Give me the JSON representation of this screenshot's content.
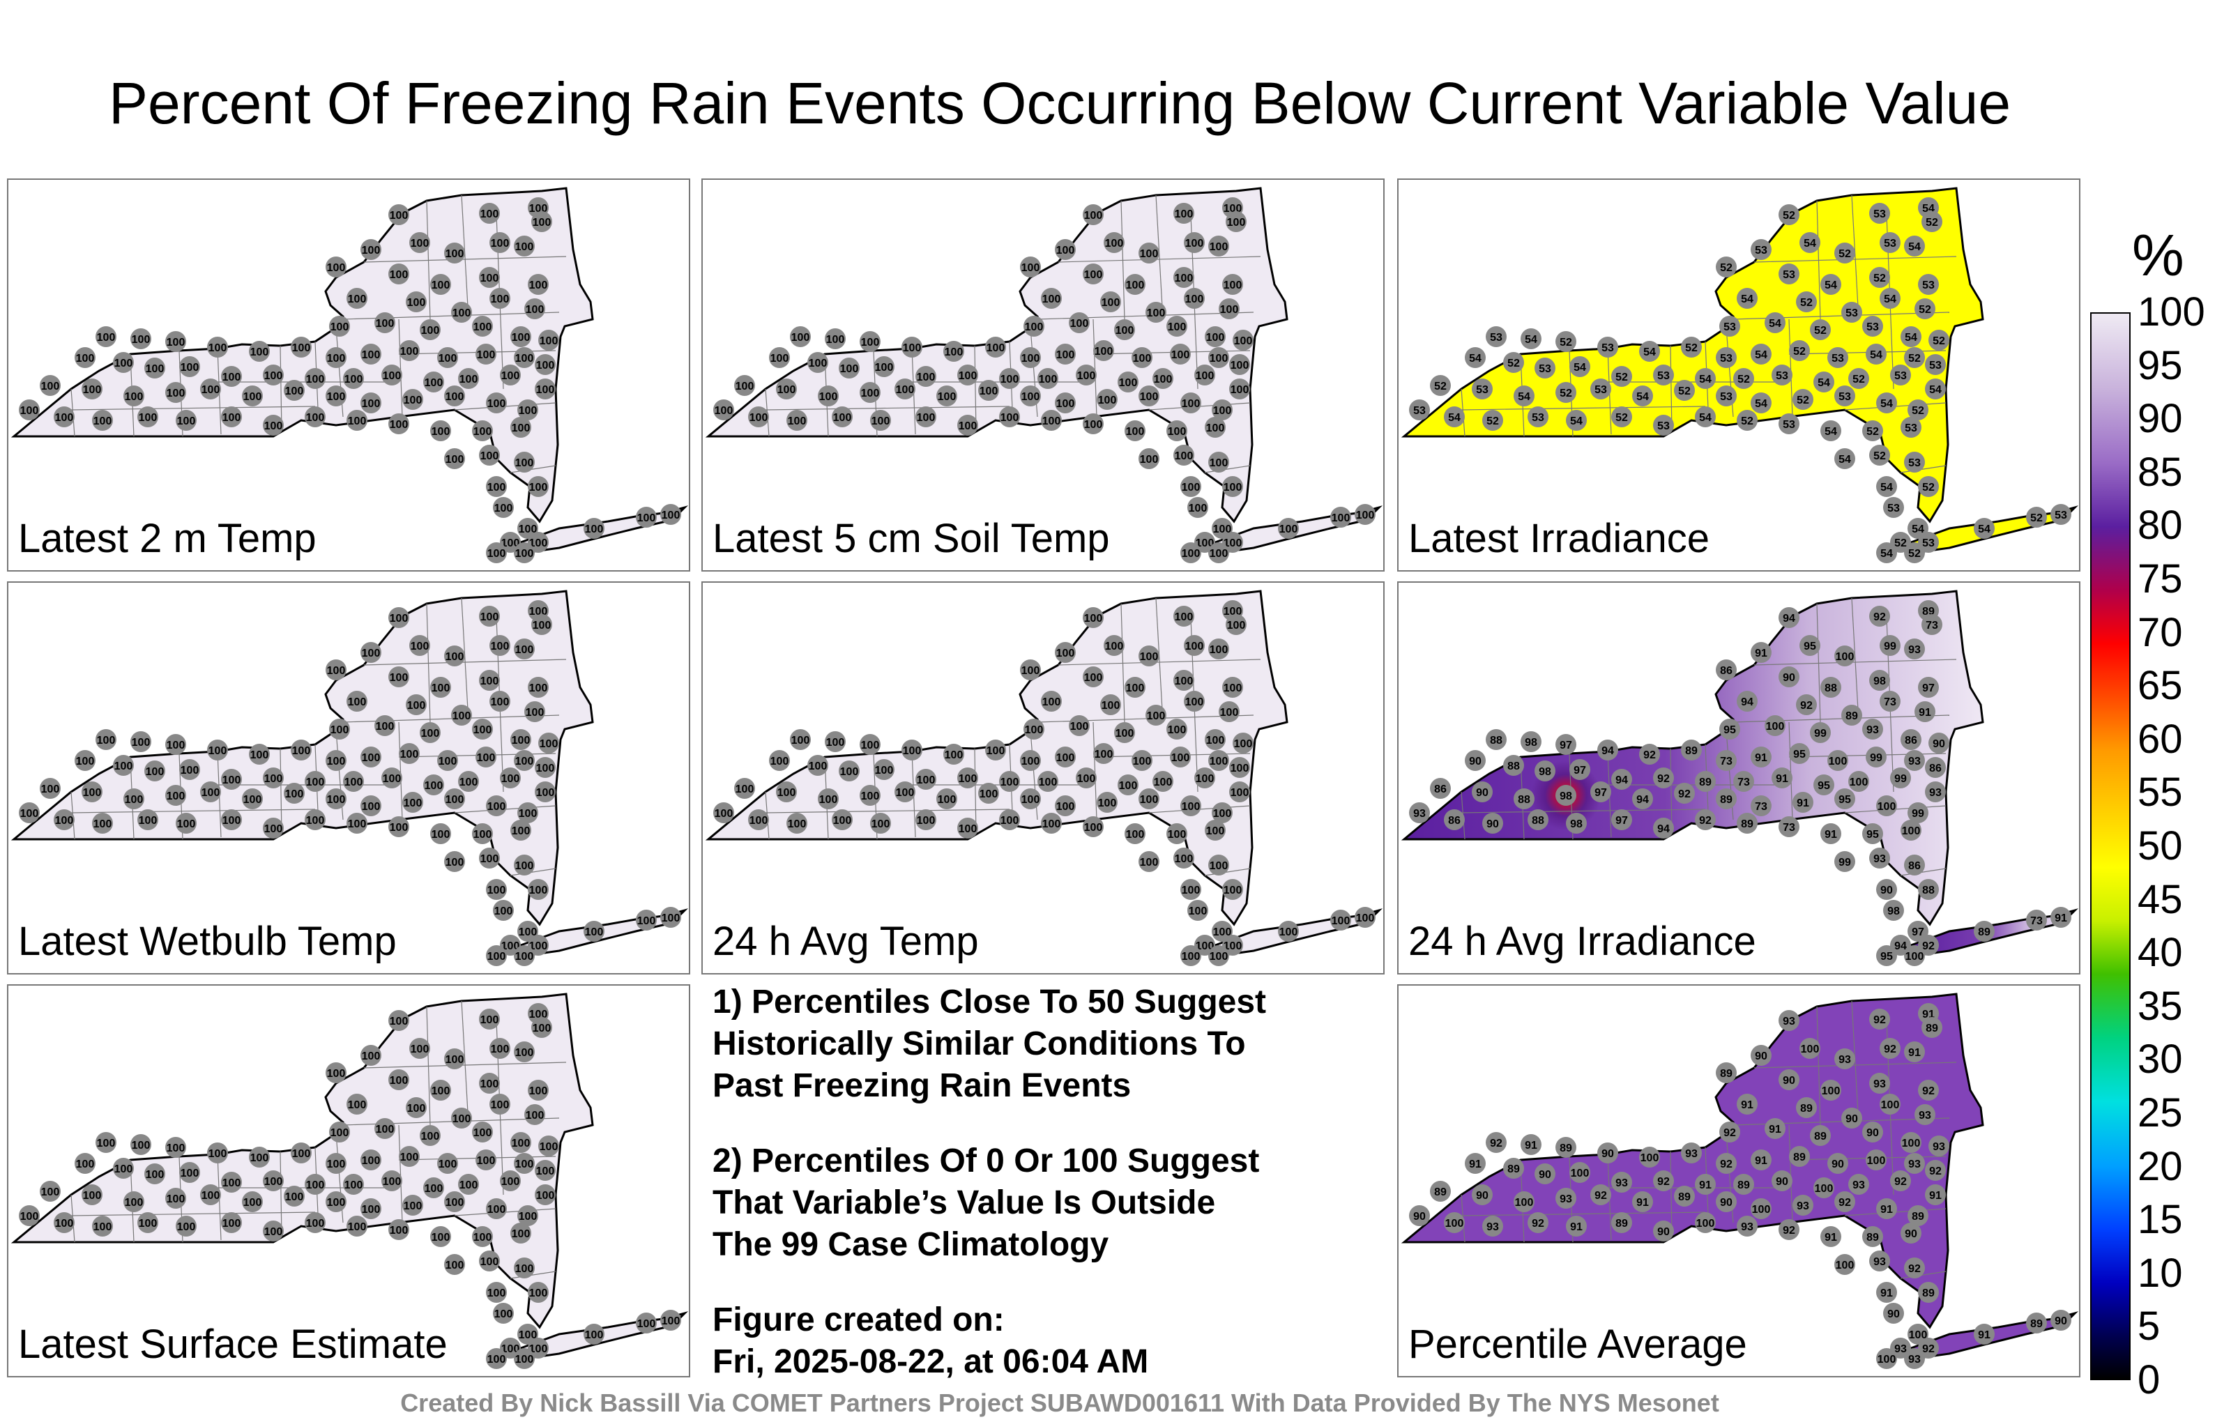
{
  "title": "Percent Of Freezing Rain Events Occurring Below Current Variable Value",
  "panels": [
    {
      "label": "Latest 2 m Temp",
      "fill": "#efeaf3",
      "values": [
        "100"
      ]
    },
    {
      "label": "Latest 5 cm Soil Temp",
      "fill": "#efeaf3",
      "values": [
        "100"
      ]
    },
    {
      "label": "Latest Irradiance",
      "fill": "#ffff00",
      "values": [
        "52",
        "53",
        "54"
      ]
    },
    {
      "label": "Latest Wetbulb Temp",
      "fill": "#efeaf3",
      "values": [
        "100"
      ]
    },
    {
      "label": "24 h Avg Temp",
      "fill": "#efeaf3",
      "values": [
        "100"
      ]
    },
    {
      "label": "24 h Avg Irradiance",
      "fill": "#7a3fb0",
      "values": [
        "94",
        "92",
        "89",
        "73",
        "91",
        "95",
        "100",
        "99",
        "93",
        "86",
        "90",
        "88",
        "98",
        "97"
      ]
    },
    {
      "label": "Latest Surface Estimate",
      "fill": "#efeaf3",
      "values": [
        "100"
      ]
    },
    {
      "label": "Percentile Average",
      "fill": "#8243b8",
      "values": [
        "93",
        "92",
        "91",
        "89",
        "90",
        "100"
      ]
    }
  ],
  "notes": [
    "1) Percentiles Close To 50 Suggest\nHistorically Similar Conditions To\nPast Freezing Rain Events",
    "2) Percentiles Of 0 Or 100 Suggest\nThat Variable’s Value Is Outside\nThe 99 Case Climatology",
    "Figure created on:\nFri, 2025-08-22, at 06:04 AM"
  ],
  "credit": "Created By Nick Bassill Via COMET Partners Project SUBAWD001611 With Data Provided By The NYS Mesonet",
  "colorbar": {
    "unit": "%",
    "ticks": [
      "100",
      "95",
      "90",
      "85",
      "80",
      "75",
      "70",
      "65",
      "60",
      "55",
      "50",
      "45",
      "40",
      "35",
      "30",
      "25",
      "20",
      "15",
      "10",
      "5",
      "0"
    ]
  }
}
